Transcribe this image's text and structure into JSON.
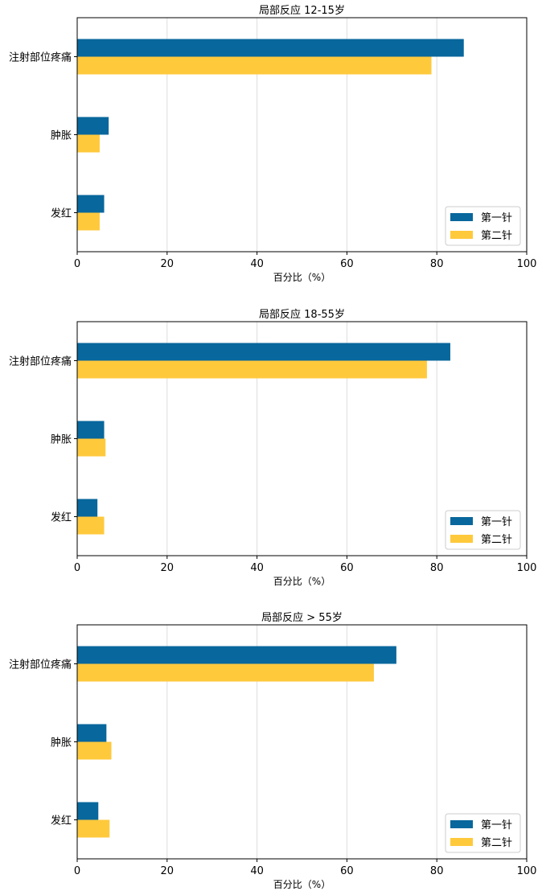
{
  "chart_data": [
    {
      "type": "bar",
      "orientation": "horizontal",
      "title": "局部反应 12-15岁",
      "xlabel": "百分比（%）",
      "ylabel": "",
      "categories": [
        "注射部位疼痛",
        "肿胀",
        "发红"
      ],
      "series": [
        {
          "name": "第一针",
          "color": "#08679c",
          "values": [
            86,
            7,
            6
          ]
        },
        {
          "name": "第二针",
          "color": "#ffc93c",
          "values": [
            78.8,
            5,
            5
          ]
        }
      ],
      "xlim": [
        0,
        100
      ],
      "xticks": [
        0,
        20,
        40,
        60,
        80,
        100
      ],
      "grid": "vertical",
      "legend": "bottom-right"
    },
    {
      "type": "bar",
      "orientation": "horizontal",
      "title": "局部反应 18-55岁",
      "xlabel": "百分比（%）",
      "ylabel": "",
      "categories": [
        "注射部位疼痛",
        "肿胀",
        "发红"
      ],
      "series": [
        {
          "name": "第一针",
          "color": "#08679c",
          "values": [
            83,
            6,
            4.5
          ]
        },
        {
          "name": "第二针",
          "color": "#ffc93c",
          "values": [
            77.8,
            6.3,
            6
          ]
        }
      ],
      "xlim": [
        0,
        100
      ],
      "xticks": [
        0,
        20,
        40,
        60,
        80,
        100
      ],
      "grid": "vertical",
      "legend": "bottom-right"
    },
    {
      "type": "bar",
      "orientation": "horizontal",
      "title": "局部反应 > 55岁",
      "xlabel": "百分比（%）",
      "ylabel": "",
      "categories": [
        "注射部位疼痛",
        "肿胀",
        "发红"
      ],
      "series": [
        {
          "name": "第一针",
          "color": "#08679c",
          "values": [
            71,
            6.5,
            4.7
          ]
        },
        {
          "name": "第二针",
          "color": "#ffc93c",
          "values": [
            66,
            7.6,
            7.2
          ]
        }
      ],
      "xlim": [
        0,
        100
      ],
      "xticks": [
        0,
        20,
        40,
        60,
        80,
        100
      ],
      "grid": "vertical",
      "legend": "bottom-right"
    }
  ]
}
